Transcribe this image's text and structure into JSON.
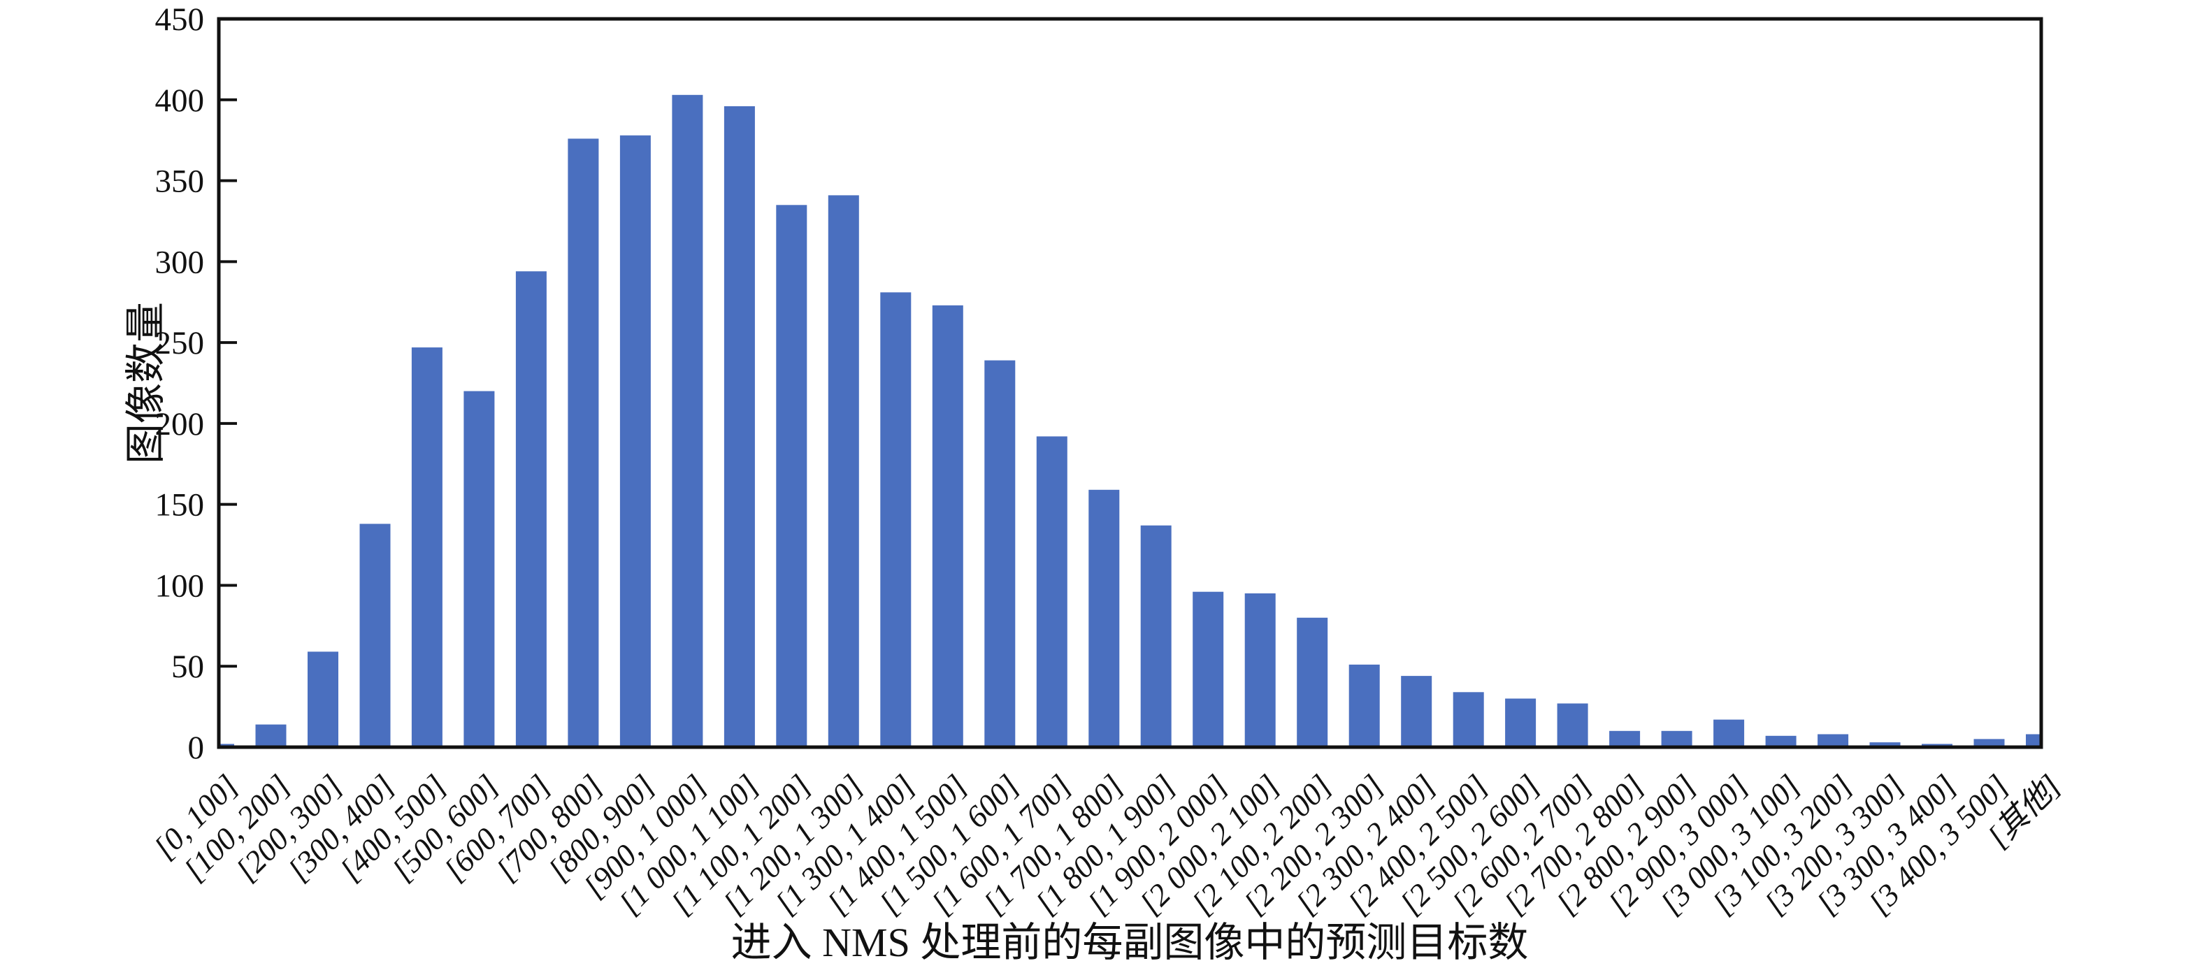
{
  "chart_data": {
    "type": "bar",
    "title": "",
    "xlabel": "进入 NMS 处理前的每副图像中的预测目标数",
    "ylabel": "图像数量",
    "categories": [
      "[0, 100]",
      "[100, 200]",
      "[200, 300]",
      "[300, 400]",
      "[400, 500]",
      "[500, 600]",
      "[600, 700]",
      "[700, 800]",
      "[800, 900]",
      "[900, 1 000]",
      "[1 000, 1 100]",
      "[1 100, 1 200]",
      "[1 200, 1 300]",
      "[1 300, 1 400]",
      "[1 400, 1 500]",
      "[1 500, 1 600]",
      "[1 600, 1 700]",
      "[1 700, 1 800]",
      "[1 800, 1 900]",
      "[1 900, 2 000]",
      "[2 000, 2 100]",
      "[2 100, 2 200]",
      "[2 200, 2 300]",
      "[2 300, 2 400]",
      "[2 400, 2 500]",
      "[2 500, 2 600]",
      "[2 600, 2 700]",
      "[2 700, 2 800]",
      "[2 800, 2 900]",
      "[2 900, 3 000]",
      "[3 000, 3 100]",
      "[3 100, 3 200]",
      "[3 200, 3 300]",
      "[3 300, 3 400]",
      "[3 400, 3 500]",
      "[其他]"
    ],
    "values": [
      2,
      14,
      59,
      138,
      247,
      220,
      294,
      376,
      378,
      403,
      396,
      335,
      341,
      281,
      273,
      239,
      192,
      159,
      137,
      96,
      95,
      80,
      51,
      44,
      34,
      30,
      27,
      10,
      10,
      17,
      7,
      8,
      3,
      2,
      5,
      8
    ],
    "ylim": [
      0,
      450
    ],
    "ytick_step": 50,
    "yticks": [
      0,
      50,
      100,
      150,
      200,
      250,
      300,
      350,
      400,
      450
    ],
    "x_label_rotation_deg": -45,
    "grid": false,
    "legend": false,
    "colors": {
      "bar": "#4A6FBF",
      "axis": "#111111",
      "text": "#111111",
      "background": "#FFFFFF"
    }
  }
}
